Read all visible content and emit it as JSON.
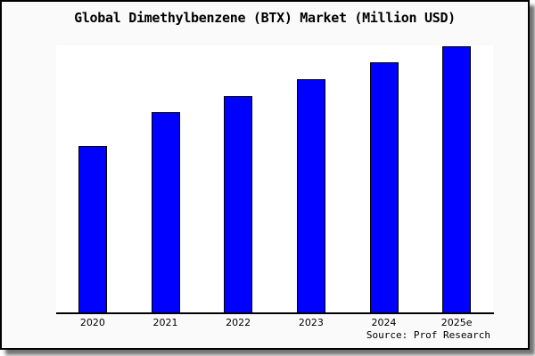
{
  "title": "Global Dimethylbenzene (BTX) Market (Million USD)",
  "source": "Source: Prof Research",
  "colors": {
    "bar_fill": "#0000ff",
    "bar_border": "#000000",
    "card_background": "#fafafa",
    "plot_background": "#ffffff",
    "frame": "#000000",
    "text": "#000000"
  },
  "chart_data": {
    "type": "bar",
    "title": "Global Dimethylbenzene (BTX) Market (Million USD)",
    "categories": [
      "2020",
      "2021",
      "2022",
      "2023",
      "2024",
      "2025e"
    ],
    "values": [
      62.5,
      75.1,
      81.3,
      87.6,
      94.0,
      100.0
    ],
    "values_note": "no y-axis or data labels shown; values estimated relative to tallest bar = 100",
    "xlabel": "",
    "ylabel": "",
    "ylim": [
      0,
      100.3
    ],
    "grid": false,
    "legend": false,
    "bar_color": "#0000ff",
    "annotations": [
      "Source: Prof Research"
    ]
  }
}
